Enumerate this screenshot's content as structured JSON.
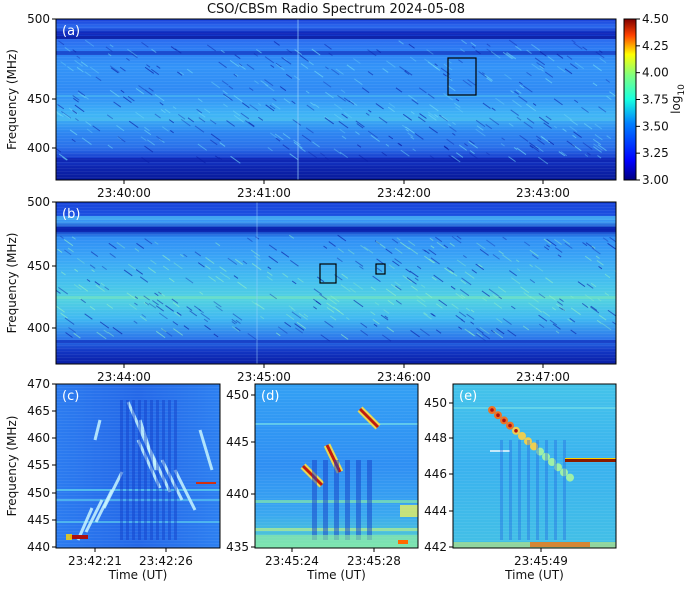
{
  "figure": {
    "title": "CSO/CBSm Radio Spectrum 2024-05-08",
    "colorbar": {
      "ticks": [
        "4.50",
        "4.25",
        "4.00",
        "3.75",
        "3.50",
        "3.25",
        "3.00"
      ],
      "label": "log",
      "label_sub": "10",
      "range": [
        3.0,
        4.5
      ],
      "colormap": "jet"
    }
  },
  "chart_data": [
    {
      "panel": "(a)",
      "type": "heatmap",
      "ylabel": "Frequency (MHz)",
      "xlabel": "",
      "yticks": [
        "500",
        "450",
        "400"
      ],
      "xticks": [
        "23:40:00",
        "23:41:00",
        "23:42:00",
        "23:43:00"
      ],
      "ylim": [
        372,
        500
      ],
      "highlight_box": {
        "time_range": [
          "23:42:21",
          "23:42:27"
        ],
        "freq_range": [
          440,
          470
        ]
      }
    },
    {
      "panel": "(b)",
      "type": "heatmap",
      "ylabel": "Frequency (MHz)",
      "xlabel": "",
      "yticks": [
        "500",
        "450",
        "400"
      ],
      "xticks": [
        "23:44:00",
        "23:45:00",
        "23:46:00",
        "23:47:00"
      ],
      "ylim": [
        372,
        500
      ],
      "highlight_boxes": [
        {
          "time_range": [
            "23:45:24",
            "23:45:29"
          ],
          "freq_range": [
            435,
            450
          ]
        },
        {
          "time_range": [
            "23:45:48",
            "23:45:51"
          ],
          "freq_range": [
            442,
            450
          ]
        }
      ]
    },
    {
      "panel": "(c)",
      "type": "heatmap",
      "ylabel": "Frequency (MHz)",
      "xlabel": "Time (UT)",
      "yticks": [
        "470",
        "465",
        "460",
        "455",
        "450",
        "445",
        "440"
      ],
      "ylim": [
        440,
        470
      ],
      "xticks": [
        "23:42:21",
        "23:42:26"
      ]
    },
    {
      "panel": "(d)",
      "type": "heatmap",
      "ylabel": "",
      "xlabel": "Time (UT)",
      "yticks": [
        "450",
        "445",
        "440",
        "435"
      ],
      "ylim": [
        435,
        450
      ],
      "xticks": [
        "23:45:24",
        "23:45:28"
      ]
    },
    {
      "panel": "(e)",
      "type": "heatmap",
      "ylabel": "",
      "xlabel": "Time (UT)",
      "yticks": [
        "450",
        "448",
        "446",
        "444",
        "442"
      ],
      "ylim": [
        442,
        450
      ],
      "xticks": [
        "23:45:49"
      ]
    }
  ]
}
